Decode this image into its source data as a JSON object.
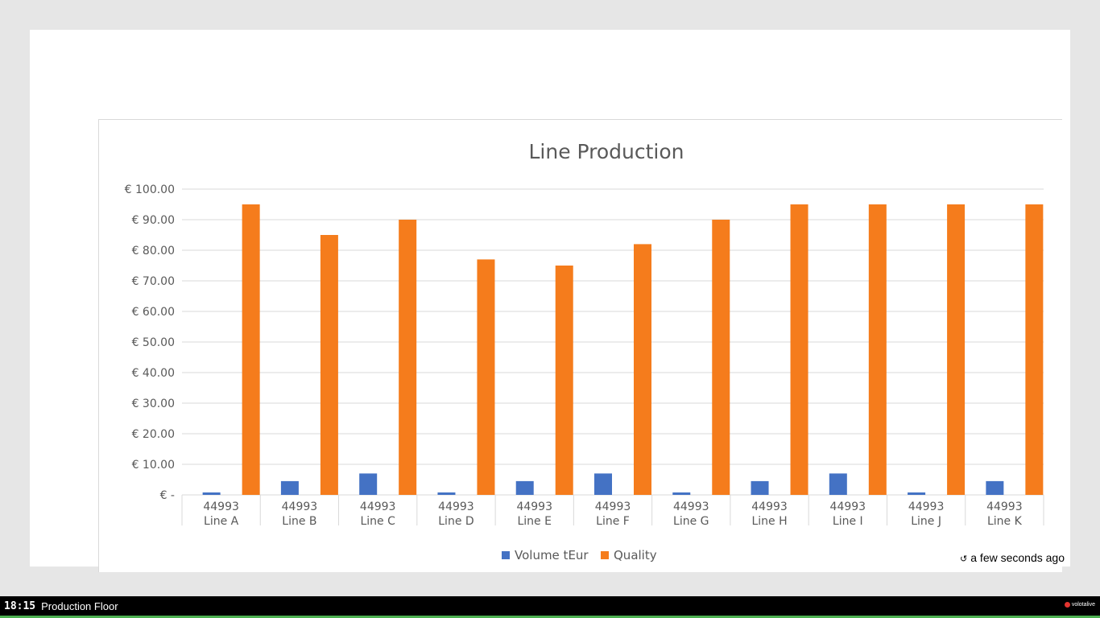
{
  "refresh": {
    "icon": "refresh-icon",
    "text": "a few seconds ago"
  },
  "footer": {
    "clock": "18:15",
    "screen_name": "Production Floor",
    "brand": "volotalive"
  },
  "colors": {
    "volume": "#4472c4",
    "quality": "#f57c1c",
    "grid": "#d9d9d9",
    "text": "#595959"
  },
  "chart_data": {
    "type": "bar",
    "title": "Line Production",
    "xlabel": "",
    "ylabel": "",
    "ylim": [
      0,
      100
    ],
    "yticks": [
      "€ -",
      "€ 10.00",
      "€ 20.00",
      "€ 30.00",
      "€ 40.00",
      "€ 50.00",
      "€ 60.00",
      "€ 70.00",
      "€ 80.00",
      "€ 90.00",
      "€ 100.00"
    ],
    "categories": [
      [
        "44993",
        "Line A"
      ],
      [
        "44993",
        "Line B"
      ],
      [
        "44993",
        "Line C"
      ],
      [
        "44993",
        "Line D"
      ],
      [
        "44993",
        "Line E"
      ],
      [
        "44993",
        "Line F"
      ],
      [
        "44993",
        "Line G"
      ],
      [
        "44993",
        "Line H"
      ],
      [
        "44993",
        "Line I"
      ],
      [
        "44993",
        "Line J"
      ],
      [
        "44993",
        "Line K"
      ]
    ],
    "series": [
      {
        "name": "Volume tEur",
        "color": "#4472c4",
        "values": [
          0.8,
          4.5,
          7,
          0.8,
          4.5,
          7,
          0.8,
          4.5,
          7,
          0.8,
          4.5
        ]
      },
      {
        "name": "Quality",
        "color": "#f57c1c",
        "values": [
          95,
          85,
          90,
          77,
          75,
          82,
          90,
          95,
          95,
          95,
          95
        ]
      }
    ],
    "grid": true,
    "legend": "bottom"
  }
}
